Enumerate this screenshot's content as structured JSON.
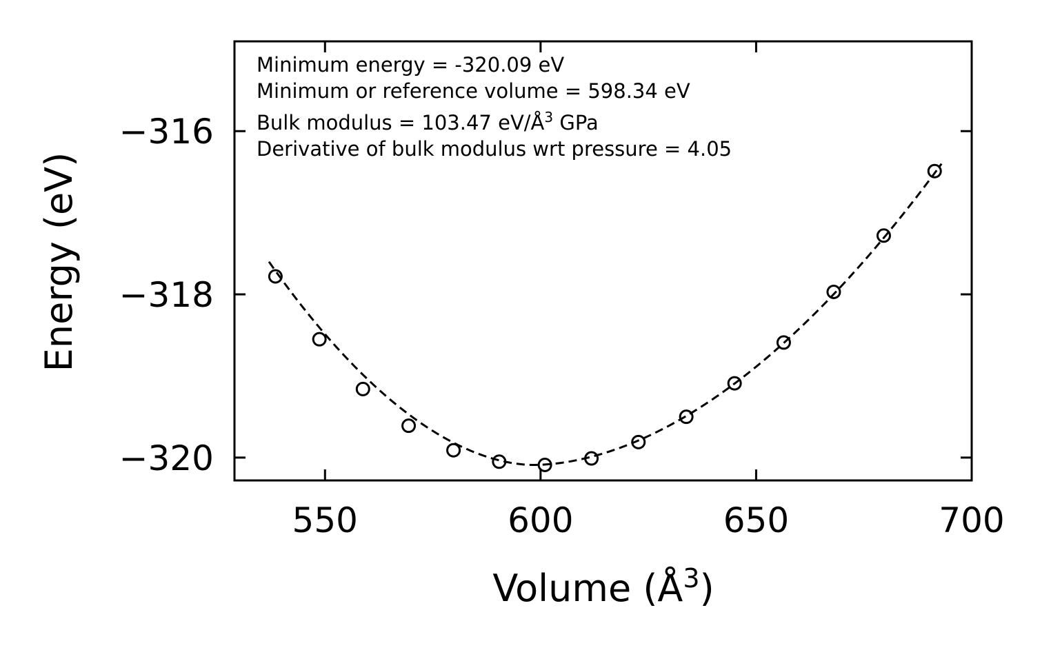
{
  "chart_data": {
    "type": "scatter",
    "xlabel": "Volume (Å",
    "xlabel_sup": "3",
    "xlabel_end": ")",
    "ylabel": "Energy (eV)",
    "xlim": [
      529,
      700
    ],
    "ylim": [
      -320.28,
      -314.9
    ],
    "xticks": [
      550,
      600,
      650,
      700
    ],
    "yticks": [
      -316,
      -318,
      -320
    ],
    "xtick_labels": [
      "550",
      "600",
      "650",
      "700"
    ],
    "ytick_labels": [
      "−316",
      "−318",
      "−320"
    ],
    "grid": false,
    "annotations": {
      "line1": "Minimum energy = -320.09 eV",
      "line2": "Minimum or reference volume = 598.34 eV",
      "line3_before": "Bulk modulus = 103.47 eV/Å",
      "line3_sup": "3",
      "line3_after": " GPa",
      "line4": "Derivative of bulk modulus wrt pressure = 4.05"
    },
    "series": [
      {
        "name": "data points",
        "marker": "open-circle",
        "x": [
          538.5,
          548.7,
          558.8,
          569.4,
          579.8,
          590.4,
          601.0,
          611.8,
          622.7,
          633.8,
          645.0,
          656.4,
          668.0,
          679.6,
          691.4
        ],
        "y": [
          -317.78,
          -318.55,
          -319.16,
          -319.61,
          -319.91,
          -320.05,
          -320.09,
          -320.01,
          -319.81,
          -319.5,
          -319.09,
          -318.59,
          -317.97,
          -317.28,
          -316.49
        ]
      },
      {
        "name": "fit",
        "style": "dashed",
        "E0": -320.09,
        "V0": 598.34,
        "x_range": [
          537,
          693
        ],
        "y_start": -317.6,
        "y_end": -316.4
      }
    ]
  }
}
